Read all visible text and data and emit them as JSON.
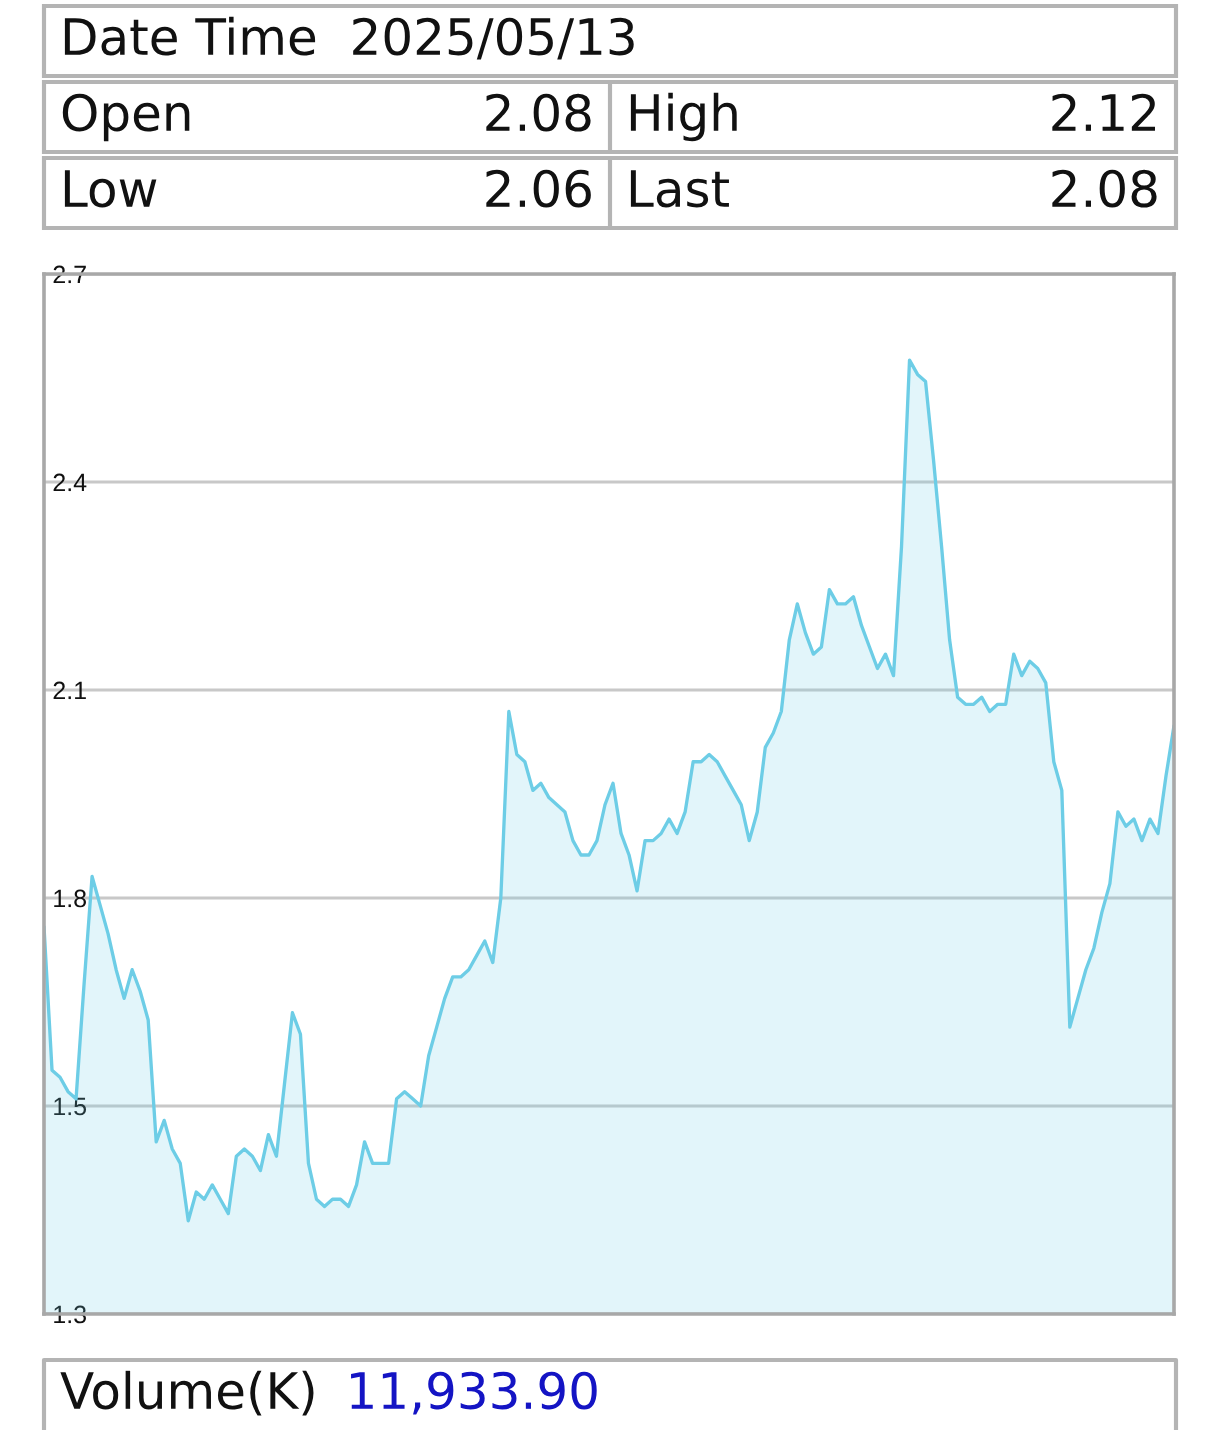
{
  "chart_data": [
    {
      "type": "other",
      "title": "Date Time  2025/05/13",
      "annotations": [
        "Open",
        "2.08",
        "High",
        "2.12",
        "Low",
        "2.06",
        "Last",
        "2.08"
      ]
    },
    {
      "type": "area",
      "color": "#6dcde6",
      "grid": "y",
      "tick_labels": "y",
      "ylim": [
        1.25,
        2.7
      ],
      "yticks": [
        {
          "value": 1.25,
          "label": "1.3"
        },
        {
          "value": 1.54,
          "label": "1.5"
        },
        {
          "value": 1.83,
          "label": "1.8"
        },
        {
          "value": 2.12,
          "label": "2.1"
        },
        {
          "value": 2.41,
          "label": "2.4"
        },
        {
          "value": 2.7,
          "label": "2.7"
        }
      ],
      "categories": [
        null,
        null,
        null,
        null,
        null,
        null,
        null,
        null,
        null,
        null,
        null,
        null,
        null,
        null,
        null,
        null,
        null,
        null,
        null,
        null,
        null,
        null,
        null,
        null,
        null,
        null,
        null,
        null,
        null,
        null,
        null,
        null,
        null,
        null,
        null,
        null,
        null,
        null,
        null,
        null,
        null,
        null,
        null,
        null,
        null,
        null,
        null,
        null,
        null,
        null,
        null,
        null,
        null,
        null,
        null,
        null,
        null,
        null,
        null,
        null,
        null,
        null,
        null,
        null,
        null,
        null,
        null,
        null,
        null,
        null,
        null,
        null,
        null,
        null,
        null,
        null,
        null,
        null,
        null,
        null,
        null,
        null,
        null,
        null,
        null,
        null,
        null,
        null,
        null,
        null,
        null,
        null,
        null,
        null,
        null,
        null,
        null,
        null,
        null,
        null,
        null,
        null,
        null,
        null,
        null,
        null,
        null,
        null,
        null,
        null,
        null,
        null,
        null,
        null,
        null,
        null,
        null,
        null,
        null,
        null,
        null,
        null,
        null,
        null,
        null,
        null,
        null,
        null,
        null,
        null,
        null,
        null,
        null,
        null,
        null,
        null,
        null,
        null,
        null,
        null,
        null,
        null
      ],
      "values": [
        1.79,
        1.59,
        1.58,
        1.56,
        1.55,
        1.71,
        1.86,
        1.82,
        1.78,
        1.73,
        1.69,
        1.73,
        1.7,
        1.66,
        1.49,
        1.52,
        1.48,
        1.46,
        1.38,
        1.42,
        1.41,
        1.43,
        1.41,
        1.39,
        1.47,
        1.48,
        1.47,
        1.45,
        1.5,
        1.47,
        1.57,
        1.67,
        1.64,
        1.46,
        1.41,
        1.4,
        1.41,
        1.41,
        1.4,
        1.43,
        1.49,
        1.46,
        1.46,
        1.46,
        1.55,
        1.56,
        1.55,
        1.54,
        1.61,
        1.65,
        1.69,
        1.72,
        1.72,
        1.73,
        1.75,
        1.77,
        1.74,
        1.83,
        2.09,
        2.03,
        2.02,
        1.98,
        1.99,
        1.97,
        1.96,
        1.95,
        1.91,
        1.89,
        1.89,
        1.91,
        1.96,
        1.99,
        1.92,
        1.89,
        1.84,
        1.91,
        1.91,
        1.92,
        1.94,
        1.92,
        1.95,
        2.02,
        2.02,
        2.03,
        2.02,
        2.0,
        1.98,
        1.96,
        1.91,
        1.95,
        2.04,
        2.06,
        2.09,
        2.19,
        2.24,
        2.2,
        2.17,
        2.18,
        2.26,
        2.24,
        2.24,
        2.25,
        2.21,
        2.18,
        2.15,
        2.17,
        2.14,
        2.32,
        2.58,
        2.56,
        2.55,
        2.44,
        2.32,
        2.19,
        2.11,
        2.1,
        2.1,
        2.11,
        2.09,
        2.1,
        2.1,
        2.17,
        2.14,
        2.16,
        2.15,
        2.13,
        2.02,
        1.98,
        1.65,
        1.69,
        1.73,
        1.76,
        1.81,
        1.85,
        1.95,
        1.93,
        1.94,
        1.91,
        1.94,
        1.92,
        2.0,
        2.07
      ]
    },
    {
      "type": "other",
      "annotations": [
        "Volume(K)",
        "11,933.90"
      ]
    }
  ]
}
